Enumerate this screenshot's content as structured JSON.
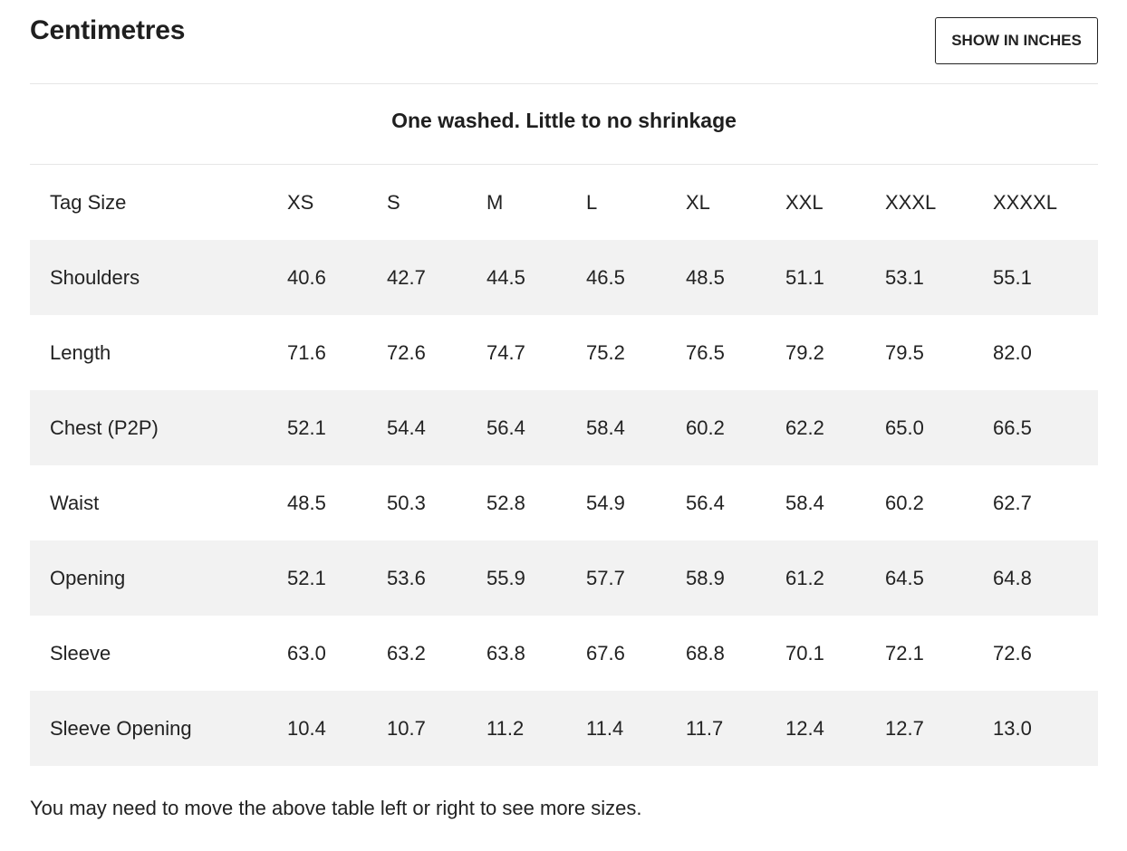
{
  "header": {
    "title": "Centimetres",
    "toggle_label": "SHOW IN INCHES"
  },
  "caption": "One washed. Little to no shrinkage",
  "table": {
    "row_header_label": "Tag Size",
    "sizes": [
      "XS",
      "S",
      "M",
      "L",
      "XL",
      "XXL",
      "XXXL",
      "XXXXL"
    ],
    "rows": [
      {
        "label": "Shoulders",
        "values": [
          "40.6",
          "42.7",
          "44.5",
          "46.5",
          "48.5",
          "51.1",
          "53.1",
          "55.1"
        ]
      },
      {
        "label": "Length",
        "values": [
          "71.6",
          "72.6",
          "74.7",
          "75.2",
          "76.5",
          "79.2",
          "79.5",
          "82.0"
        ]
      },
      {
        "label": "Chest (P2P)",
        "values": [
          "52.1",
          "54.4",
          "56.4",
          "58.4",
          "60.2",
          "62.2",
          "65.0",
          "66.5"
        ]
      },
      {
        "label": "Waist",
        "values": [
          "48.5",
          "50.3",
          "52.8",
          "54.9",
          "56.4",
          "58.4",
          "60.2",
          "62.7"
        ]
      },
      {
        "label": "Opening",
        "values": [
          "52.1",
          "53.6",
          "55.9",
          "57.7",
          "58.9",
          "61.2",
          "64.5",
          "64.8"
        ]
      },
      {
        "label": "Sleeve",
        "values": [
          "63.0",
          "63.2",
          "63.8",
          "67.6",
          "68.8",
          "70.1",
          "72.1",
          "72.6"
        ]
      },
      {
        "label": "Sleeve Opening",
        "values": [
          "10.4",
          "10.7",
          "11.2",
          "11.4",
          "11.7",
          "12.4",
          "12.7",
          "13.0"
        ]
      }
    ]
  },
  "footnote": "You may need to move the above table left or right to see more sizes.",
  "colors": {
    "text": "#222222",
    "row_stripe": "#f2f2f2",
    "divider": "#e6e6e6",
    "button_border": "#222222"
  }
}
